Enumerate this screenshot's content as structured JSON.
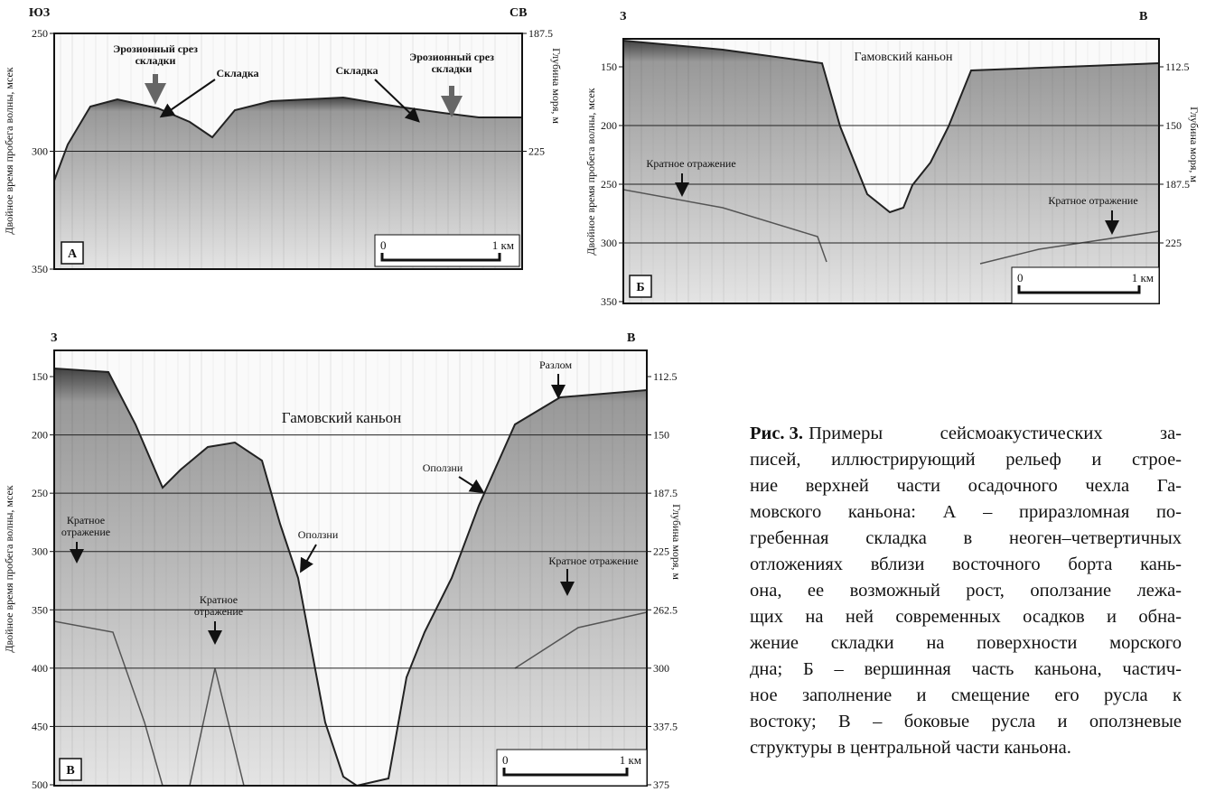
{
  "panels": [
    {
      "panel_label": "А",
      "left_direction": "ЮЗ",
      "right_direction": "СВ",
      "left_axis_title": "Двойное время пробега волны, мсек",
      "right_axis_title": "Глубина моря, м",
      "left_ticks": [
        250,
        300,
        350
      ],
      "right_ticks": [
        187.5,
        225
      ],
      "annotations": [
        [
          "Эрозионный срез",
          "складки"
        ],
        [
          "Складка"
        ],
        [
          "Складка"
        ],
        [
          "Эрозионный срез",
          "складки"
        ]
      ],
      "scale": [
        "0",
        "1 км"
      ]
    },
    {
      "panel_label": "Б",
      "left_direction": "З",
      "right_direction": "В",
      "left_axis_title": "Двойное время пробега волны, мсек",
      "right_axis_title": "Глубина моря, м",
      "left_ticks": [
        150,
        200,
        250,
        300,
        350
      ],
      "right_ticks": [
        112.5,
        150,
        187.5,
        225
      ],
      "annotations": [
        [
          "Гамовский каньон"
        ],
        [
          "Кратное отражение"
        ],
        [
          "Кратное отражение"
        ]
      ],
      "scale": [
        "0",
        "1 км"
      ]
    },
    {
      "panel_label": "В",
      "left_direction": "З",
      "right_direction": "В",
      "left_axis_title": "Двойное время пробега волны, мсек",
      "right_axis_title": "Глубина моря, м",
      "left_ticks": [
        150,
        200,
        250,
        300,
        350,
        400,
        450,
        500
      ],
      "right_ticks": [
        112.5,
        150,
        187.5,
        225,
        262.5,
        300,
        337.5,
        375
      ],
      "annotations": [
        [
          "Разлом"
        ],
        [
          "Гамовский каньон"
        ],
        [
          "Оползни"
        ],
        [
          "Оползни"
        ],
        [
          "Кратное",
          "отражение"
        ],
        [
          "Кратное",
          "отражение"
        ],
        [
          "Кратное отражение"
        ]
      ],
      "scale": [
        "0",
        "1 км"
      ]
    }
  ],
  "caption": {
    "label": "Рис. 3.",
    "lines": [
      "Примеры сейсмоакустических за-",
      "писей, иллюстрирующий рельеф и строе-",
      "ние верхней части осадочного чехла Га-",
      "мовского каньона: А – приразломная по-",
      "гребенная складка в неоген–четвертичных",
      "отложениях вблизи восточного борта кань-",
      "она, ее возможный рост, оползание лежа-",
      "щих на ней современных осадков и обна-",
      "жение складки на поверхности морского",
      "дна; Б – вершинная часть каньона, частич-",
      "ное заполнение и смещение его русла к",
      "востоку; В – боковые русла и оползневые",
      "структуры в центральной части каньона."
    ]
  }
}
